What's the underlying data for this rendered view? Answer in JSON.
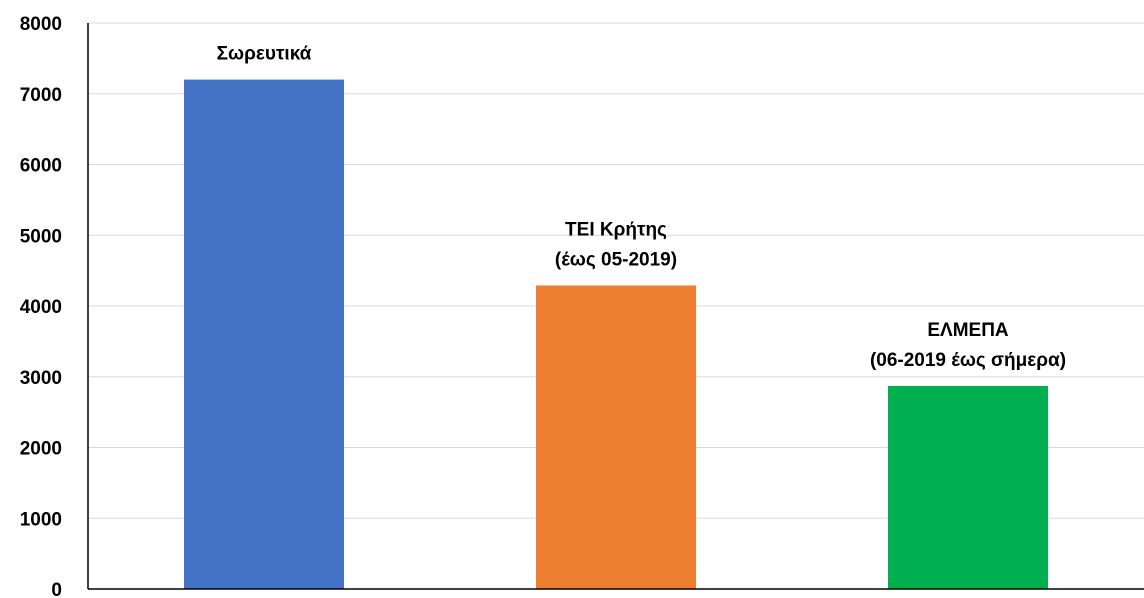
{
  "chart_data": {
    "type": "bar",
    "categories": [
      "Σωρευτικά",
      "ΤΕΙ Κρήτης\n(έως 05-2019)",
      "ΕΛΜΕΠΑ\n(06-2019 έως σήμερα)"
    ],
    "values": [
      7200,
      4290,
      2870
    ],
    "colors": [
      "#4472c4",
      "#ed7d31",
      "#00b050"
    ],
    "ylim": [
      0,
      8000
    ],
    "yticks": [
      0,
      1000,
      2000,
      3000,
      4000,
      5000,
      6000,
      7000,
      8000
    ],
    "grid": true,
    "title": "",
    "xlabel": "",
    "ylabel": ""
  }
}
